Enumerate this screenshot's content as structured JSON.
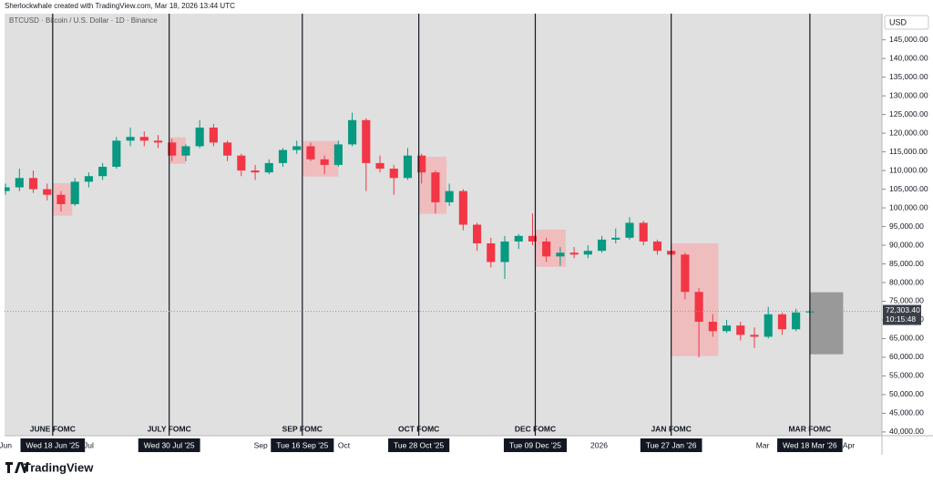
{
  "chart_data": {
    "type": "candlestick",
    "header": "Sherlockwhale created with TradingView.com, Mar 18, 2026 13:44 UTC",
    "title": "BTCUSD · Bitcoin / U.S. Dollar · 1D · Binance",
    "currency": "USD",
    "brand": "TradingView",
    "up_color": "#089981",
    "down_color": "#f23645",
    "x": [
      "2025-06-01",
      "2025-06-06",
      "2025-06-11",
      "2025-06-16",
      "2025-06-21",
      "2025-06-26",
      "2025-07-01",
      "2025-07-06",
      "2025-07-11",
      "2025-07-16",
      "2025-07-21",
      "2025-07-26",
      "2025-07-31",
      "2025-08-05",
      "2025-08-10",
      "2025-08-15",
      "2025-08-20",
      "2025-08-25",
      "2025-08-30",
      "2025-09-04",
      "2025-09-09",
      "2025-09-14",
      "2025-09-19",
      "2025-09-24",
      "2025-09-29",
      "2025-10-04",
      "2025-10-09",
      "2025-10-14",
      "2025-10-19",
      "2025-10-24",
      "2025-10-29",
      "2025-11-03",
      "2025-11-08",
      "2025-11-13",
      "2025-11-18",
      "2025-11-23",
      "2025-11-28",
      "2025-12-03",
      "2025-12-08",
      "2025-12-13",
      "2025-12-18",
      "2025-12-23",
      "2025-12-28",
      "2026-01-02",
      "2026-01-07",
      "2026-01-12",
      "2026-01-17",
      "2026-01-22",
      "2026-01-27",
      "2026-02-01",
      "2026-02-06",
      "2026-02-11",
      "2026-02-16",
      "2026-02-21",
      "2026-02-26",
      "2026-03-03",
      "2026-03-08",
      "2026-03-13",
      "2026-03-18"
    ],
    "open": [
      104500,
      105500,
      108000,
      105000,
      103500,
      101000,
      107000,
      108500,
      111000,
      118000,
      119000,
      118000,
      117500,
      114000,
      116500,
      121500,
      117500,
      114000,
      110000,
      109500,
      112000,
      115500,
      116500,
      113000,
      111500,
      117000,
      123500,
      112000,
      110500,
      108000,
      114000,
      109500,
      101500,
      104500,
      95500,
      90500,
      85500,
      91000,
      92500,
      91000,
      87000,
      88000,
      87500,
      88500,
      91500,
      92000,
      96000,
      91000,
      88500,
      87500,
      77500,
      69500,
      67000,
      68500,
      66000,
      65500,
      71500,
      67500,
      72000
    ],
    "high": [
      106500,
      110500,
      110000,
      106500,
      104500,
      108000,
      109500,
      112000,
      119000,
      121500,
      120500,
      119500,
      118500,
      117000,
      123500,
      122500,
      118000,
      114500,
      111500,
      113000,
      116000,
      118000,
      117500,
      114000,
      118000,
      125500,
      124000,
      114000,
      111500,
      116000,
      114500,
      110000,
      106500,
      105000,
      96000,
      92000,
      92500,
      93000,
      98500,
      92000,
      89500,
      89500,
      90000,
      92500,
      94500,
      97500,
      96500,
      91500,
      90500,
      88000,
      78500,
      71500,
      70000,
      69500,
      68000,
      73500,
      72000,
      73000,
      76000
    ],
    "low": [
      103500,
      104500,
      104000,
      102000,
      99000,
      100500,
      105500,
      107500,
      110500,
      116500,
      116500,
      116000,
      112500,
      112500,
      116000,
      116500,
      112500,
      108500,
      107500,
      109000,
      111000,
      114500,
      112500,
      109000,
      111000,
      116500,
      104500,
      109500,
      103500,
      107500,
      106500,
      98500,
      100500,
      94000,
      88500,
      84000,
      81000,
      89000,
      90000,
      85500,
      84500,
      86500,
      86500,
      88000,
      90500,
      91500,
      90000,
      87500,
      86500,
      75500,
      60000,
      65500,
      66500,
      64500,
      62500,
      65000,
      66000,
      67000,
      71500
    ],
    "close": [
      105500,
      108000,
      105000,
      103500,
      101000,
      107000,
      108500,
      111000,
      118000,
      119000,
      118000,
      117500,
      114000,
      116500,
      121500,
      117500,
      114000,
      110000,
      109500,
      112000,
      115500,
      116500,
      113000,
      111500,
      117000,
      123500,
      112000,
      110500,
      108000,
      114000,
      109500,
      101500,
      104500,
      95500,
      90500,
      85500,
      91000,
      92500,
      91000,
      87000,
      88000,
      87500,
      88500,
      91500,
      92000,
      96000,
      91000,
      88500,
      87500,
      77500,
      69500,
      67000,
      68500,
      66000,
      65500,
      71500,
      67500,
      72000,
      72303.4
    ],
    "last_close_label": "72,303.40",
    "countdown": "10:15:48",
    "xlim": [
      "2025-05-30",
      "2026-04-13"
    ],
    "xticks": [
      {
        "value": "2025-06-01",
        "label": "Jun"
      },
      {
        "value": "2025-07-01",
        "label": "Jul"
      },
      {
        "value": "2025-09-01",
        "label": "Sep"
      },
      {
        "value": "2025-10-01",
        "label": "Oct"
      },
      {
        "value": "2026-01-01",
        "label": "2026"
      },
      {
        "value": "2026-03-01",
        "label": "Mar"
      },
      {
        "value": "2026-04-01",
        "label": "Apr"
      }
    ],
    "ylim": [
      39000,
      152000
    ],
    "yticks": [
      {
        "value": 40000,
        "label": "40,000.00"
      },
      {
        "value": 45000,
        "label": "45,000.00"
      },
      {
        "value": 50000,
        "label": "50,000.00"
      },
      {
        "value": 55000,
        "label": "55,000.00"
      },
      {
        "value": 60000,
        "label": "60,000.00"
      },
      {
        "value": 65000,
        "label": "65,000.00"
      },
      {
        "value": 70000,
        "label": "70,000.00"
      },
      {
        "value": 75000,
        "label": "75,000.00"
      },
      {
        "value": 80000,
        "label": "80,000.00"
      },
      {
        "value": 85000,
        "label": "85,000.00"
      },
      {
        "value": 90000,
        "label": "90,000.00"
      },
      {
        "value": 95000,
        "label": "95,000.00"
      },
      {
        "value": 100000,
        "label": "100,000.00"
      },
      {
        "value": 105000,
        "label": "105,000.00"
      },
      {
        "value": 110000,
        "label": "110,000.00"
      },
      {
        "value": 115000,
        "label": "115,000.00"
      },
      {
        "value": 120000,
        "label": "120,000.00"
      },
      {
        "value": 125000,
        "label": "125,000.00"
      },
      {
        "value": 130000,
        "label": "130,000.00"
      },
      {
        "value": 135000,
        "label": "135,000.00"
      },
      {
        "value": 140000,
        "label": "140,000.00"
      },
      {
        "value": 145000,
        "label": "145,000.00"
      }
    ],
    "events": [
      {
        "label": "JUNE FOMC",
        "date": "2025-06-18",
        "date_label": "Wed 18 Jun '25",
        "zone_end": "2025-06-25",
        "zone_low": 97900,
        "zone_high": 106600,
        "zone_color": "#f2b6b8"
      },
      {
        "label": "JULY FOMC",
        "date": "2025-07-30",
        "date_label": "Wed 30 Jul '25",
        "zone_end": "2025-08-05",
        "zone_low": 111800,
        "zone_high": 118900,
        "zone_color": "#f2b6b8"
      },
      {
        "label": "SEP FOMC",
        "date": "2025-09-16",
        "date_label": "Tue 16 Sep '25",
        "zone_end": "2025-09-29",
        "zone_low": 108400,
        "zone_high": 117900,
        "zone_color": "#f2b6b8"
      },
      {
        "label": "OCT FOMC",
        "date": "2025-10-28",
        "date_label": "Tue 28 Oct '25",
        "zone_end": "2025-11-07",
        "zone_low": 98400,
        "zone_high": 113700,
        "zone_color": "#f2b6b8"
      },
      {
        "label": "DEC FOMC",
        "date": "2025-12-09",
        "date_label": "Tue 09 Dec '25",
        "zone_end": "2025-12-20",
        "zone_low": 84200,
        "zone_high": 94200,
        "zone_color": "#f2b6b8"
      },
      {
        "label": "JAN FOMC",
        "date": "2026-01-27",
        "date_label": "Tue 27 Jan '26",
        "zone_end": "2026-02-13",
        "zone_low": 60300,
        "zone_high": 90500,
        "zone_color": "#f2b6b8"
      },
      {
        "label": "MAR FOMC",
        "date": "2026-03-18",
        "date_label": "Wed 18 Mar '26",
        "zone_end": "2026-03-30",
        "zone_low": 60800,
        "zone_high": 77400,
        "zone_color": "#8c8c8c"
      }
    ]
  }
}
